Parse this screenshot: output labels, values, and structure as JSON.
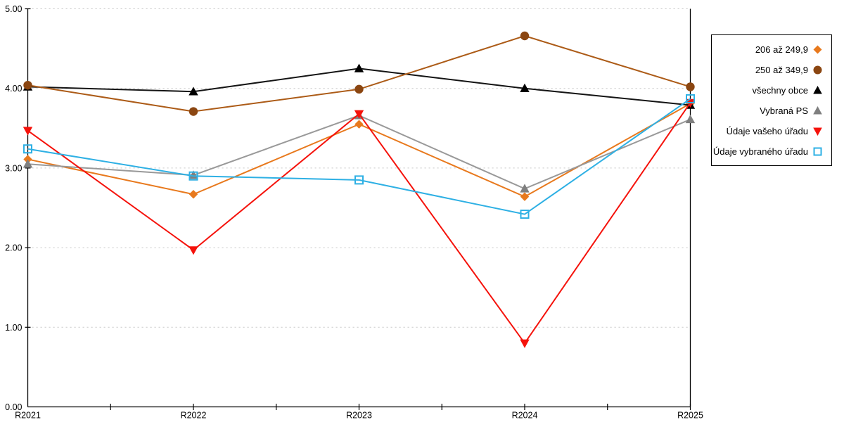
{
  "chart_data": {
    "type": "line",
    "title": "",
    "xlabel": "",
    "ylabel": "",
    "categories": [
      "R2021",
      "R2022",
      "R2023",
      "R2024",
      "R2025"
    ],
    "series": [
      {
        "name": "206 až 249,9",
        "marker": "diamond",
        "line_color": "#E8791D",
        "marker_color": "#E8791D",
        "values": [
          3.11,
          2.67,
          3.55,
          2.64,
          3.81
        ]
      },
      {
        "name": "250 až 349,9",
        "marker": "circle",
        "line_color": "#AC5B17",
        "marker_color": "#8B4611",
        "values": [
          4.04,
          3.71,
          3.99,
          4.66,
          4.02
        ]
      },
      {
        "name": "všechny obce",
        "marker": "triangle-up",
        "line_color": "#141414",
        "marker_color": "#000000",
        "values": [
          4.02,
          3.96,
          4.25,
          4.0,
          3.79
        ]
      },
      {
        "name": "Vybraná PS",
        "marker": "triangle-up",
        "line_color": "#999999",
        "marker_color": "#7F7F7F",
        "values": [
          3.05,
          2.91,
          3.66,
          2.74,
          3.61
        ]
      },
      {
        "name": "Údaje vašeho úřadu",
        "marker": "triangle-down",
        "line_color": "#F5120B",
        "marker_color": "#F5120B",
        "values": [
          3.47,
          1.97,
          3.68,
          0.8,
          3.82
        ]
      },
      {
        "name": "Údaje vybraného úřadu",
        "marker": "square-open",
        "line_color": "#2EB0E4",
        "marker_color": "#2EB0E4",
        "values": [
          3.24,
          2.9,
          2.85,
          2.42,
          3.87
        ]
      }
    ],
    "ylim": [
      0,
      5
    ],
    "y_tick_labels": [
      "0.00",
      "1.00",
      "2.00",
      "3.00",
      "4.00",
      "5.00"
    ],
    "x_minor_ticks_between_categories": 1,
    "grid": "horizontal-dotted",
    "legend_position": "right"
  },
  "colors": {
    "background": "#FFFFFF",
    "axis": "#000000",
    "gridline": "#C9C9C9",
    "tick_label": "#000000"
  }
}
